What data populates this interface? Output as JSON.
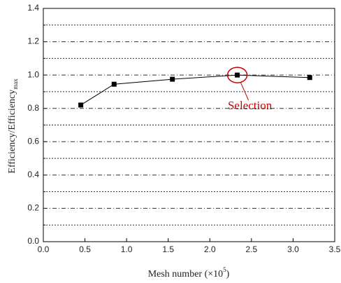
{
  "chart_data": {
    "type": "line",
    "xlabel": [
      "Mesh number (×10",
      "5",
      ")"
    ],
    "ylabel": [
      "Efficiency/Efficiency",
      "max"
    ],
    "x": [
      0.45,
      0.85,
      1.55,
      2.33,
      3.2
    ],
    "series": [
      {
        "color": "#000000",
        "values": [
          0.82,
          0.945,
          0.975,
          1.0,
          0.985
        ]
      }
    ],
    "xlim": [
      0,
      3.5
    ],
    "xticks": [
      {
        "value": 0,
        "label": "0.0"
      },
      0.5,
      {
        "value": 1,
        "label": "1.0"
      },
      1.5,
      {
        "value": 2,
        "label": "2.0"
      },
      2.5,
      {
        "value": 3,
        "label": "3.0"
      },
      3.5
    ],
    "ylim": [
      0,
      1.4
    ],
    "yticks": [
      {
        "value": 0,
        "label": "0.0"
      },
      0.2,
      0.4,
      0.6,
      0.8,
      {
        "value": 1,
        "label": "1.0"
      },
      1.2,
      1.4
    ],
    "yminor": [
      0.1,
      0.3,
      0.5,
      0.7,
      0.9,
      1.1,
      1.3
    ],
    "grid": true,
    "annotation": {
      "text": "Selection",
      "point": 3,
      "color": "#cc0000"
    }
  }
}
